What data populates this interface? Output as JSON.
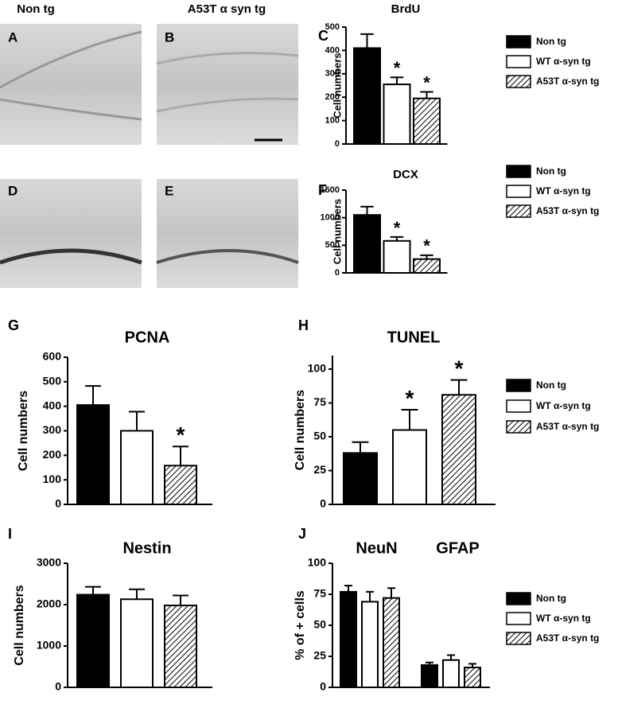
{
  "image_panels": [
    {
      "label": "A",
      "column_title": "Non tg"
    },
    {
      "label": "B",
      "column_title": "A53T α syn tg"
    },
    {
      "label": "D"
    },
    {
      "label": "E"
    }
  ],
  "chart_data": [
    {
      "type": "bar",
      "panel_label": "C",
      "title": "BrdU",
      "ylabel": "Cell numbers",
      "ylim": [
        0,
        500
      ],
      "yticks": [
        0,
        100,
        200,
        300,
        400,
        500
      ],
      "legend": true,
      "series": [
        {
          "name": "Non tg",
          "color": "#000000",
          "values": [
            410
          ],
          "errors": [
            60
          ]
        },
        {
          "name": "WT α-syn tg",
          "color": "#ffffff",
          "values": [
            255
          ],
          "errors": [
            30
          ],
          "annotations": [
            "*"
          ]
        },
        {
          "name": "A53T α-syn tg",
          "color": "#ffffff",
          "pattern": "hatch",
          "values": [
            195
          ],
          "errors": [
            28
          ],
          "annotations": [
            "*"
          ]
        }
      ]
    },
    {
      "type": "bar",
      "panel_label": "F",
      "title": "DCX",
      "ylabel": "Cell numbers",
      "ylim": [
        0,
        1500
      ],
      "yticks": [
        0,
        500,
        1000,
        1500
      ],
      "legend": true,
      "series": [
        {
          "name": "Non tg",
          "color": "#000000",
          "values": [
            1050
          ],
          "errors": [
            150
          ]
        },
        {
          "name": "WT α-syn tg",
          "color": "#ffffff",
          "values": [
            580
          ],
          "errors": [
            70
          ],
          "annotations": [
            "*"
          ]
        },
        {
          "name": "A53T α-syn tg",
          "color": "#ffffff",
          "pattern": "hatch",
          "values": [
            250
          ],
          "errors": [
            70
          ],
          "annotations": [
            "*"
          ]
        }
      ]
    },
    {
      "type": "bar",
      "panel_label": "G",
      "title": "PCNA",
      "ylabel": "Cell numbers",
      "ylim": [
        0,
        600
      ],
      "yticks": [
        0,
        100,
        200,
        300,
        400,
        500,
        600
      ],
      "legend": false,
      "series": [
        {
          "name": "Non tg",
          "color": "#000000",
          "values": [
            405
          ],
          "errors": [
            78
          ]
        },
        {
          "name": "WT α-syn tg",
          "color": "#ffffff",
          "values": [
            300
          ],
          "errors": [
            78
          ]
        },
        {
          "name": "A53T α-syn tg",
          "color": "#ffffff",
          "pattern": "hatch",
          "values": [
            158
          ],
          "errors": [
            78
          ],
          "annotations": [
            "*"
          ]
        }
      ]
    },
    {
      "type": "bar",
      "panel_label": "H",
      "title": "TUNEL",
      "ylabel": "Cell numbers",
      "ylim": [
        0,
        110
      ],
      "yticks": [
        0,
        25,
        50,
        75,
        100
      ],
      "legend": true,
      "series": [
        {
          "name": "Non tg",
          "color": "#000000",
          "values": [
            38
          ],
          "errors": [
            8
          ]
        },
        {
          "name": "WT α-syn tg",
          "color": "#ffffff",
          "values": [
            55
          ],
          "errors": [
            15
          ],
          "annotations": [
            "*"
          ]
        },
        {
          "name": "A53T α-syn tg",
          "color": "#ffffff",
          "pattern": "hatch",
          "values": [
            81
          ],
          "errors": [
            11
          ],
          "annotations": [
            "*"
          ]
        }
      ]
    },
    {
      "type": "bar",
      "panel_label": "I",
      "title": "Nestin",
      "ylabel": "Cell numbers",
      "ylim": [
        0,
        3000
      ],
      "yticks": [
        0,
        1000,
        2000,
        3000
      ],
      "legend": false,
      "series": [
        {
          "name": "Non tg",
          "color": "#000000",
          "values": [
            2240
          ],
          "errors": [
            190
          ]
        },
        {
          "name": "WT α-syn tg",
          "color": "#ffffff",
          "values": [
            2130
          ],
          "errors": [
            240
          ]
        },
        {
          "name": "A53T α-syn tg",
          "color": "#ffffff",
          "pattern": "hatch",
          "values": [
            1980
          ],
          "errors": [
            240
          ]
        }
      ]
    },
    {
      "type": "bar",
      "panel_label": "J",
      "categories": [
        "NeuN",
        "GFAP"
      ],
      "ylabel": "% of + cells",
      "ylim": [
        0,
        100
      ],
      "yticks": [
        0,
        25,
        50,
        75,
        100
      ],
      "legend": true,
      "series": [
        {
          "name": "Non tg",
          "color": "#000000",
          "values": [
            77,
            18
          ],
          "errors": [
            5,
            2
          ]
        },
        {
          "name": "WT α-syn tg",
          "color": "#ffffff",
          "values": [
            69,
            22
          ],
          "errors": [
            8,
            4
          ]
        },
        {
          "name": "A53T α-syn tg",
          "color": "#ffffff",
          "pattern": "hatch",
          "values": [
            72,
            16
          ],
          "errors": [
            8,
            3
          ]
        }
      ]
    }
  ]
}
